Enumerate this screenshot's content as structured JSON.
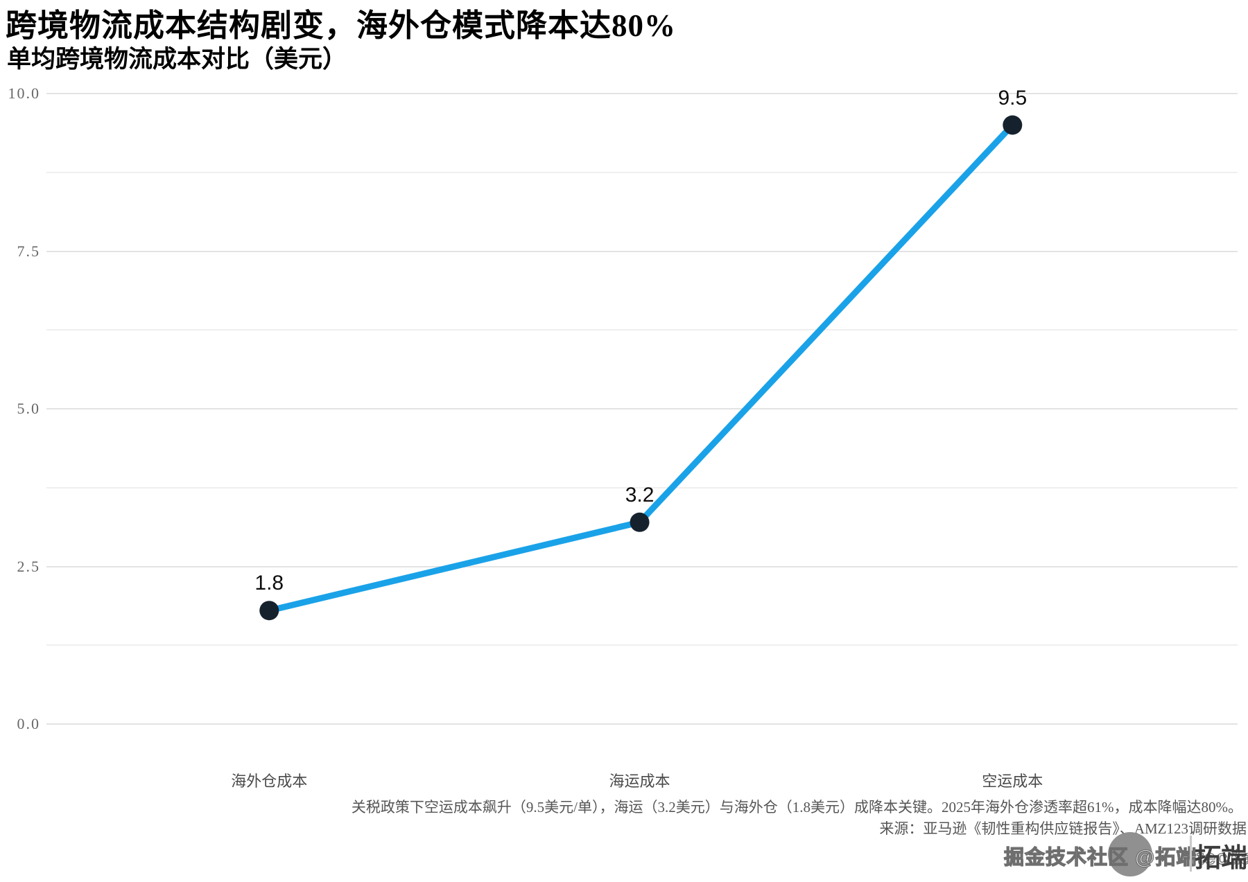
{
  "page": {
    "title": "跨境物流成本结构剧变，海外仓模式降本达80%",
    "subtitle": "单均跨境物流成本对比（美元）",
    "caption": "关税政策下空运成本飙升（9.5美元/单），海运（3.2美元）与海外仓（1.8美元）成降本关键。2025年海外仓渗透率超61%，成本降幅达80%。",
    "source": "来源：亚马逊《韧性重构供应链报告》、AMZ123调研数据",
    "watermark": {
      "community_text": "掘金技术社区 @拓端tecdat",
      "brand": "拓端®"
    }
  },
  "chart_data": {
    "type": "line",
    "title": "跨境物流成本结构剧变，海外仓模式降本达80%",
    "subtitle": "单均跨境物流成本对比（美元）",
    "categories": [
      "海外仓成本",
      "海运成本",
      "空运成本"
    ],
    "values": [
      1.8,
      3.2,
      9.5
    ],
    "value_labels": [
      "1.8",
      "3.2",
      "9.5"
    ],
    "ylabel": "",
    "xlabel": "",
    "ylim": [
      0,
      10
    ],
    "yticks": [
      0.0,
      2.5,
      5.0,
      7.5,
      10.0
    ],
    "ytick_labels": [
      "0.0",
      "2.5",
      "5.0",
      "7.5",
      "10.0"
    ],
    "minor_gridlines": [
      1.25,
      3.75,
      6.25,
      8.75
    ],
    "grid": "horizontal, major and minor, no vertical",
    "legend": "none",
    "annotation": "关税政策下空运成本飙升（9.5美元/单），海运（3.2美元）与海外仓（1.8美元）成降本关键。2025年海外仓渗透率超61%，成本降幅达80%。",
    "source": "来源：亚马逊《韧性重构供应链报告》、AMZ123调研数据",
    "colors": {
      "line": "#1AA2E8",
      "point": "#15222E",
      "grid_major": "#e3e3e3",
      "grid_minor": "#efefef",
      "tick_text": "#666666",
      "caption_text": "#555555"
    }
  }
}
